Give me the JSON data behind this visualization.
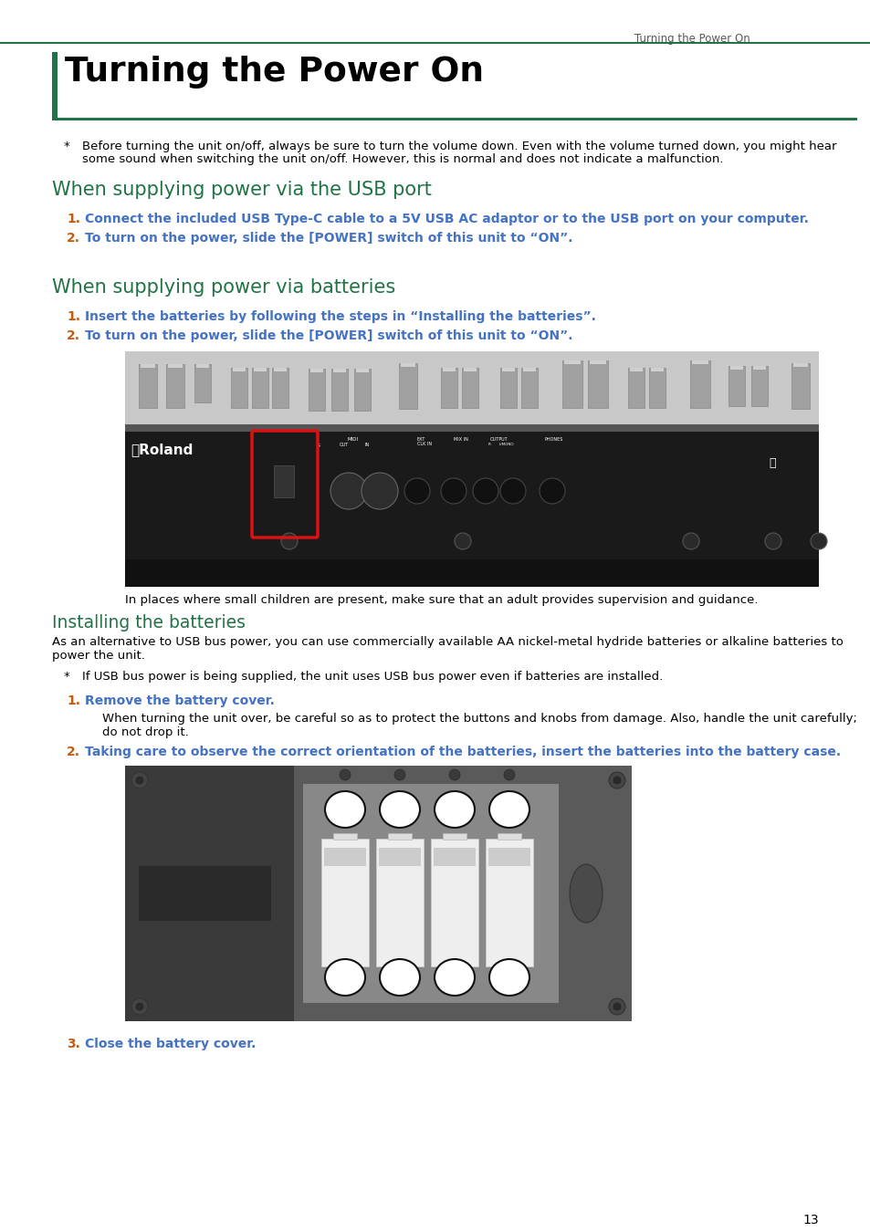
{
  "page_bg": "#ffffff",
  "header_text": "Turning the Power On",
  "top_line_color": "#217346",
  "title": "Turning the Power On",
  "title_color": "#000000",
  "title_bar_color": "#217346",
  "section1_heading": "When supplying power via the USB port",
  "section2_heading": "When supplying power via batteries",
  "section3_heading": "Installing the batteries",
  "green": "#217346",
  "blue": "#4472c4",
  "orange": "#c55a11",
  "black": "#000000",
  "gray_header": "#595959",
  "note1_line1": "Before turning the unit on/off, always be sure to turn the volume down. Even with the volume turned down, you might hear",
  "note1_line2": "some sound when switching the unit on/off. However, this is normal and does not indicate a malfunction.",
  "usb_step1": "Connect the included USB Type-C cable to a 5V USB AC adaptor or to the USB port on your computer.",
  "usb_step2": "To turn on the power, slide the [POWER] switch of this unit to “ON”.",
  "bat_step1": "Insert the batteries by following the steps in “Installing the batteries”.",
  "bat_step2": "To turn on the power, slide the [POWER] switch of this unit to “ON”.",
  "image_caption": "In places where small children are present, make sure that an adult provides supervision and guidance.",
  "install_body1": "As an alternative to USB bus power, you can use commercially available AA nickel-metal hydride batteries or alkaline batteries to",
  "install_body2": "power the unit.",
  "install_note": "If USB bus power is being supplied, the unit uses USB bus power even if batteries are installed.",
  "install_step1": "Remove the battery cover.",
  "install_step1_sub1": "When turning the unit over, be careful so as to protect the buttons and knobs from damage. Also, handle the unit carefully;",
  "install_step1_sub2": "do not drop it.",
  "install_step2": "Taking care to observe the correct orientation of the batteries, insert the batteries into the battery case.",
  "install_step3": "Close the battery cover.",
  "page_number": "13"
}
